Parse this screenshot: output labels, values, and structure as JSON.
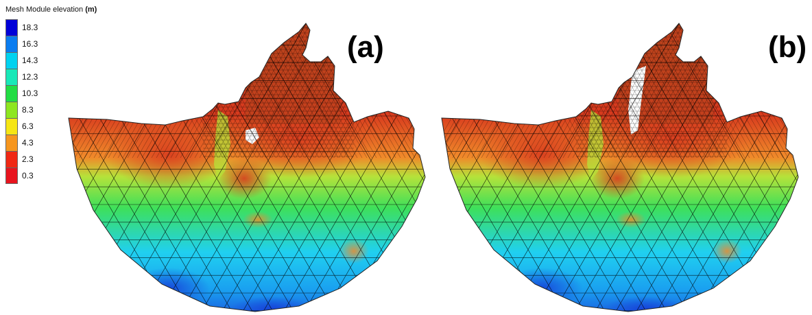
{
  "legend": {
    "title": "Mesh Module elevation",
    "unit": "(m)",
    "levels": [
      {
        "value": "18.3",
        "color": "#0000d8"
      },
      {
        "value": "16.3",
        "color": "#0a7cf0"
      },
      {
        "value": "14.3",
        "color": "#00d2f0"
      },
      {
        "value": "12.3",
        "color": "#18e8b8"
      },
      {
        "value": "10.3",
        "color": "#22dd44"
      },
      {
        "value": "8.3",
        "color": "#8ee620"
      },
      {
        "value": "6.3",
        "color": "#f6e614"
      },
      {
        "value": "4.3",
        "color": "#f6961e"
      },
      {
        "value": "2.3",
        "color": "#f02814"
      },
      {
        "value": "0.3",
        "color": "#e8141e"
      }
    ]
  },
  "panels": [
    {
      "label": "(a)"
    },
    {
      "label": "(b)"
    }
  ],
  "colors": {
    "deep_blue": "#1a5ee0",
    "cyan": "#20d0f0",
    "green": "#3ee05a",
    "yellow_green": "#b6e23a",
    "orange": "#f08a2a",
    "red": "#d83a1e",
    "river_brown": "#b8441c",
    "mesh_line": "#000000"
  }
}
